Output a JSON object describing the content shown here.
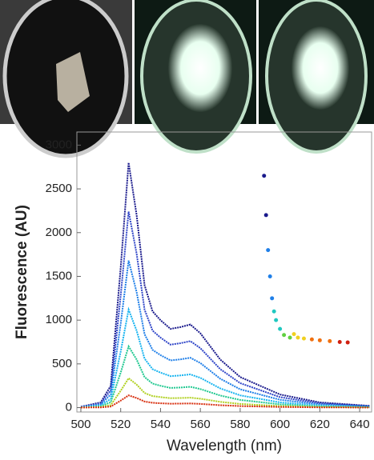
{
  "chart_data": {
    "type": "line",
    "x_label": "Wavelength (nm)",
    "y_label": "Fluorescence (AU)",
    "xlim": [
      498,
      646
    ],
    "ylim": [
      -50,
      3150
    ],
    "xticks": [
      500,
      520,
      540,
      560,
      580,
      600,
      620,
      640
    ],
    "yticks": [
      0,
      500,
      1000,
      1500,
      2000,
      2500,
      3000
    ],
    "x": [
      500,
      510,
      515,
      520,
      524,
      528,
      532,
      536,
      540,
      545,
      550,
      555,
      560,
      570,
      580,
      600,
      620,
      645
    ],
    "series": [
      {
        "color": "#1a1a8c",
        "values": [
          10,
          60,
          250,
          1600,
          2800,
          2200,
          1400,
          1100,
          1000,
          900,
          920,
          950,
          850,
          550,
          350,
          150,
          60,
          20
        ]
      },
      {
        "color": "#2f45c8",
        "values": [
          8,
          48,
          200,
          1280,
          2240,
          1760,
          1120,
          880,
          800,
          720,
          736,
          760,
          680,
          440,
          280,
          120,
          48,
          16
        ]
      },
      {
        "color": "#1f7fe8",
        "values": [
          6,
          36,
          150,
          960,
          1680,
          1320,
          840,
          660,
          600,
          540,
          552,
          570,
          510,
          330,
          210,
          90,
          36,
          12
        ]
      },
      {
        "color": "#18b4f0",
        "values": [
          4,
          24,
          100,
          640,
          1120,
          880,
          560,
          440,
          400,
          360,
          368,
          380,
          340,
          220,
          140,
          60,
          24,
          8
        ]
      },
      {
        "color": "#20c890",
        "values": [
          3,
          15,
          62,
          400,
          700,
          550,
          350,
          275,
          250,
          225,
          230,
          238,
          212,
          138,
          88,
          38,
          15,
          5
        ]
      },
      {
        "color": "#b0d020",
        "values": [
          1,
          7,
          30,
          192,
          336,
          264,
          168,
          132,
          120,
          108,
          110,
          114,
          102,
          66,
          42,
          18,
          7,
          2
        ]
      },
      {
        "color": "#d83010",
        "values": [
          1,
          3,
          12,
          80,
          140,
          110,
          70,
          55,
          50,
          45,
          46,
          48,
          42,
          28,
          18,
          8,
          3,
          1
        ]
      }
    ],
    "inset": {
      "color_stops": [
        "#1a1a8c",
        "#1f7fe8",
        "#20c8c0",
        "#60d040",
        "#f0d020",
        "#f07010",
        "#d02010"
      ],
      "x": [
        592,
        593,
        594,
        595,
        596,
        597,
        598,
        600,
        602,
        605,
        607,
        609,
        612,
        616,
        620,
        625,
        630,
        634
      ],
      "values": [
        2650,
        2200,
        1800,
        1500,
        1250,
        1100,
        1000,
        900,
        830,
        800,
        840,
        800,
        790,
        780,
        770,
        760,
        750,
        745
      ]
    }
  }
}
